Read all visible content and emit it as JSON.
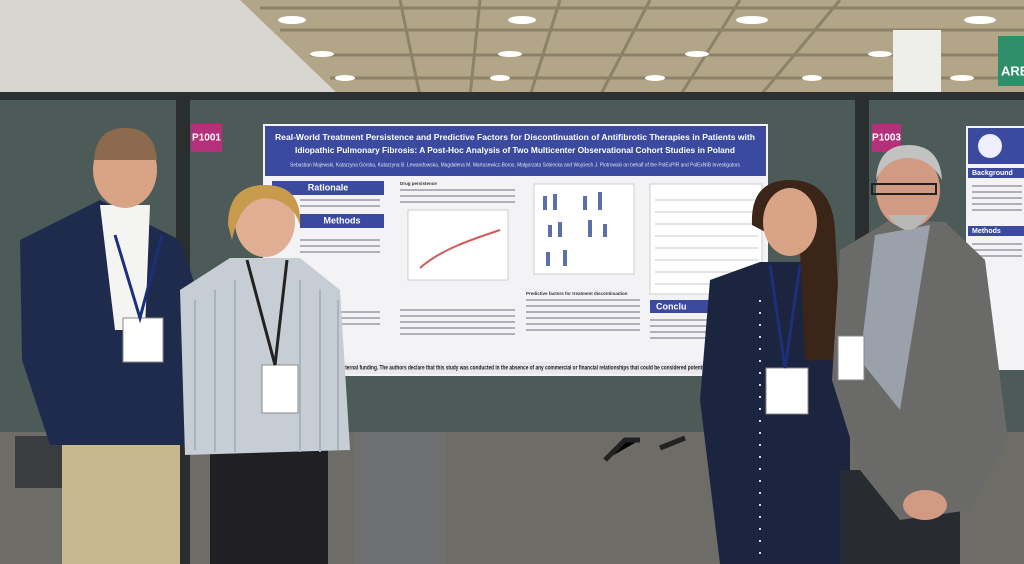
{
  "signs": {
    "left": "P1001",
    "right": "P1003",
    "banner": "ARE"
  },
  "poster": {
    "title": [
      "Real-World Treatment Persistence and Predictive Factors for Discontinuation of Antifibrotic Therapies in Patients with",
      "Idiopathic Pulmonary Fibrosis: A Post-Hoc Analysis of Two Multicenter Observational Cohort Studies in Poland"
    ],
    "authors": "Sebastian Majewski, Katarzyna Górska, Katarzyna B. Lewandowska, Magdalena M. Martusewicz-Boros, Małgorzata Sobiecka and Wojciech J. Piotrowski on behalf of the PolExPIR and PolExNIB Investigators",
    "sections": [
      "Rationale",
      "Methods",
      "Conclu"
    ],
    "subheadings": [
      "Drug persistence",
      "Predictive factors for treatment discontinuation"
    ],
    "footer": "This research received no external funding. The authors declare that this study was conducted in the absence of any commercial or financial relationships that could be considered potential conflict of interest"
  },
  "right_poster": {
    "sections": [
      "Background",
      "Methods"
    ]
  }
}
